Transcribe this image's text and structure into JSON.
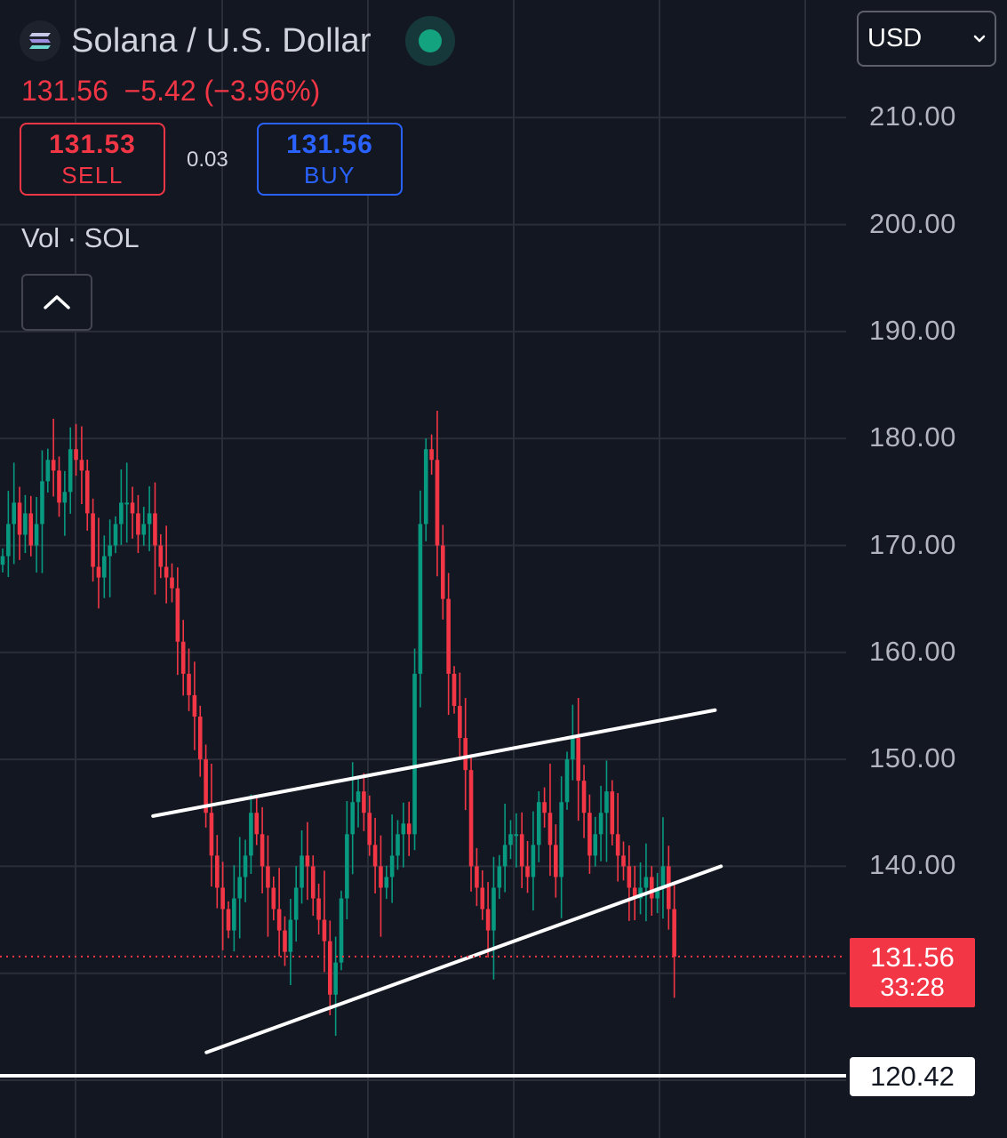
{
  "header": {
    "logo_icon": "solana-logo-icon",
    "symbol_title": "Solana / U.S. Dollar",
    "status_icon": "market-open-dot-icon",
    "status_color": "#14a37f"
  },
  "quote": {
    "last": "131.56",
    "change": "−5.42",
    "change_pct": "(−3.96%)",
    "color": "#f23645"
  },
  "trade": {
    "sell_price": "131.53",
    "sell_label": "SELL",
    "spread": "0.03",
    "buy_price": "131.56",
    "buy_label": "BUY",
    "sell_color": "#f23645",
    "buy_color": "#2962ff"
  },
  "indicator": {
    "label": "Vol · SOL",
    "collapse_icon": "chevron-up-icon"
  },
  "currency_select": {
    "value": "USD",
    "icon": "chevron-down-icon"
  },
  "price_axis": {
    "labels": [
      "210.00",
      "200.00",
      "190.00",
      "180.00",
      "170.00",
      "160.00",
      "150.00",
      "140.00"
    ]
  },
  "last_price_tag": {
    "price": "131.56",
    "countdown": "33:28"
  },
  "horizontal_line_tag": {
    "price": "120.42"
  },
  "chart_data": {
    "type": "candlestick",
    "ylim": [
      113,
      219
    ],
    "grid": true,
    "up_color": "#089981",
    "down_color": "#f23645",
    "last_price": 131.56,
    "horizontal_line": 120.42,
    "trendlines": [
      {
        "name": "upper",
        "from": [
          0.152,
          144.7
        ],
        "to": [
          0.71,
          154.6
        ]
      },
      {
        "name": "lower",
        "from": [
          0.205,
          122.6
        ],
        "to": [
          0.716,
          140.0
        ]
      }
    ],
    "closes": [
      169,
      172,
      174,
      171,
      173,
      170,
      172,
      176,
      178,
      177,
      174,
      175,
      179,
      178,
      177,
      173,
      168,
      167,
      169,
      170,
      172,
      174,
      174,
      173,
      171,
      172,
      173,
      170,
      168,
      167,
      166,
      161,
      158,
      156,
      154,
      150,
      145,
      141,
      138,
      136,
      134,
      137,
      139,
      141,
      145,
      143,
      140,
      138,
      136,
      134,
      132,
      135,
      138,
      141,
      140,
      137,
      135,
      133,
      128,
      131,
      137,
      143,
      146,
      147,
      145,
      142,
      140,
      138,
      139,
      141,
      143,
      144,
      143,
      158,
      172,
      179,
      178,
      170,
      165,
      158,
      155,
      152,
      149,
      140,
      138,
      136,
      134,
      138,
      140,
      142,
      143,
      143,
      140,
      139,
      142,
      146,
      145,
      142,
      139,
      146,
      150,
      152,
      148,
      145,
      141,
      143,
      145,
      147,
      143,
      141,
      140,
      138,
      137,
      138,
      139,
      137,
      138,
      140,
      136,
      131.56
    ]
  }
}
